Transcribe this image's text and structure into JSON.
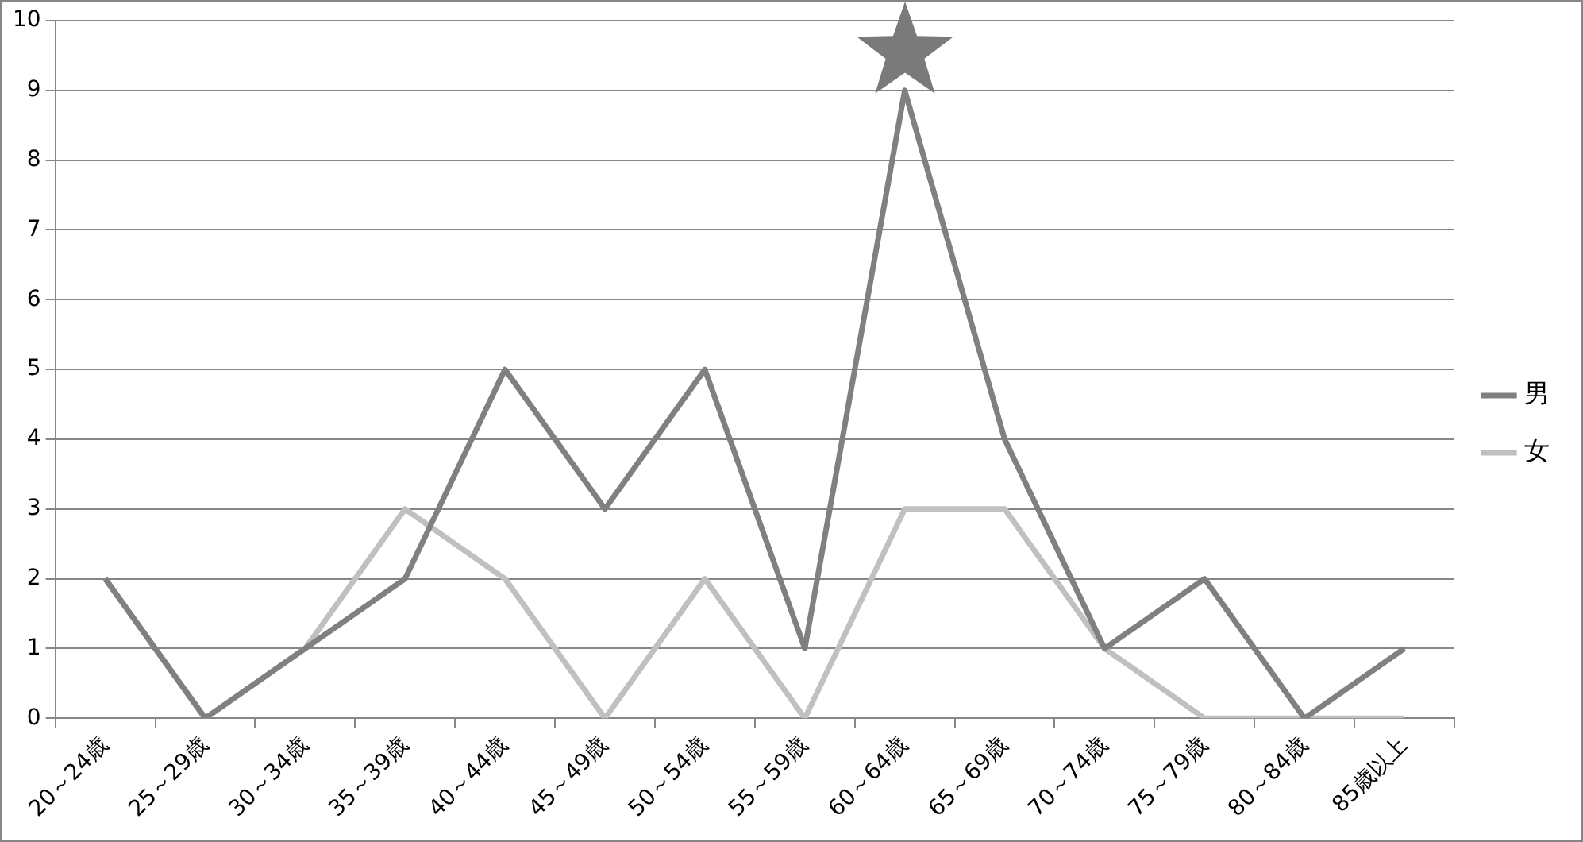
{
  "chart_data": {
    "type": "line",
    "categories": [
      "20～24歳",
      "25～29歳",
      "30～34歳",
      "35～39歳",
      "40～44歳",
      "45～49歳",
      "50～54歳",
      "55～59歳",
      "60～64歳",
      "65～69歳",
      "70～74歳",
      "75～79歳",
      "80～84歳",
      "85歳以上"
    ],
    "series": [
      {
        "name": "男",
        "color": "#808080",
        "values": [
          2,
          0,
          1,
          2,
          5,
          3,
          5,
          1,
          9,
          4,
          1,
          2,
          0,
          1
        ]
      },
      {
        "name": "女",
        "color": "#c0c0c0",
        "values": [
          2,
          0,
          1,
          3,
          2,
          0,
          2,
          0,
          3,
          3,
          1,
          0,
          0,
          0
        ]
      }
    ],
    "ylim": [
      0,
      10
    ],
    "yticks": [
      0,
      1,
      2,
      3,
      4,
      5,
      6,
      7,
      8,
      9,
      10
    ],
    "grid": "y",
    "legend": "right",
    "marker": "none",
    "line_style": "solid"
  }
}
